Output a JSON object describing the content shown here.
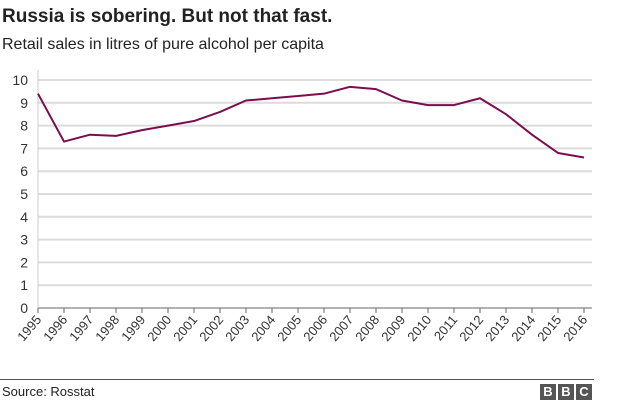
{
  "chart_data": {
    "type": "line",
    "title": "Russia is sobering. But not that fast.",
    "subtitle": "Retail sales in litres of pure alcohol per capita",
    "xlabel": "",
    "ylabel": "",
    "ylim": [
      0,
      10
    ],
    "yticks": [
      "0",
      "1",
      "2",
      "3",
      "4",
      "5",
      "6",
      "7",
      "8",
      "9",
      "10"
    ],
    "grid": true,
    "categories": [
      "1995",
      "1996",
      "1997",
      "1998",
      "1999",
      "2000",
      "2001",
      "2002",
      "2003",
      "2004",
      "2005",
      "2006",
      "2007",
      "2008",
      "2009",
      "2010",
      "2011",
      "2012",
      "2013",
      "2014",
      "2015",
      "2016"
    ],
    "series": [
      {
        "name": "Litres per capita",
        "color": "#7b0d4e",
        "values": [
          9.4,
          7.3,
          7.6,
          7.55,
          7.8,
          8.0,
          8.2,
          8.6,
          9.1,
          9.2,
          9.3,
          9.4,
          9.7,
          9.6,
          9.1,
          8.9,
          8.9,
          9.2,
          8.5,
          7.6,
          6.8,
          6.6
        ]
      }
    ]
  },
  "footer": {
    "source": "Source: Rosstat",
    "logo": [
      "B",
      "B",
      "C"
    ]
  }
}
